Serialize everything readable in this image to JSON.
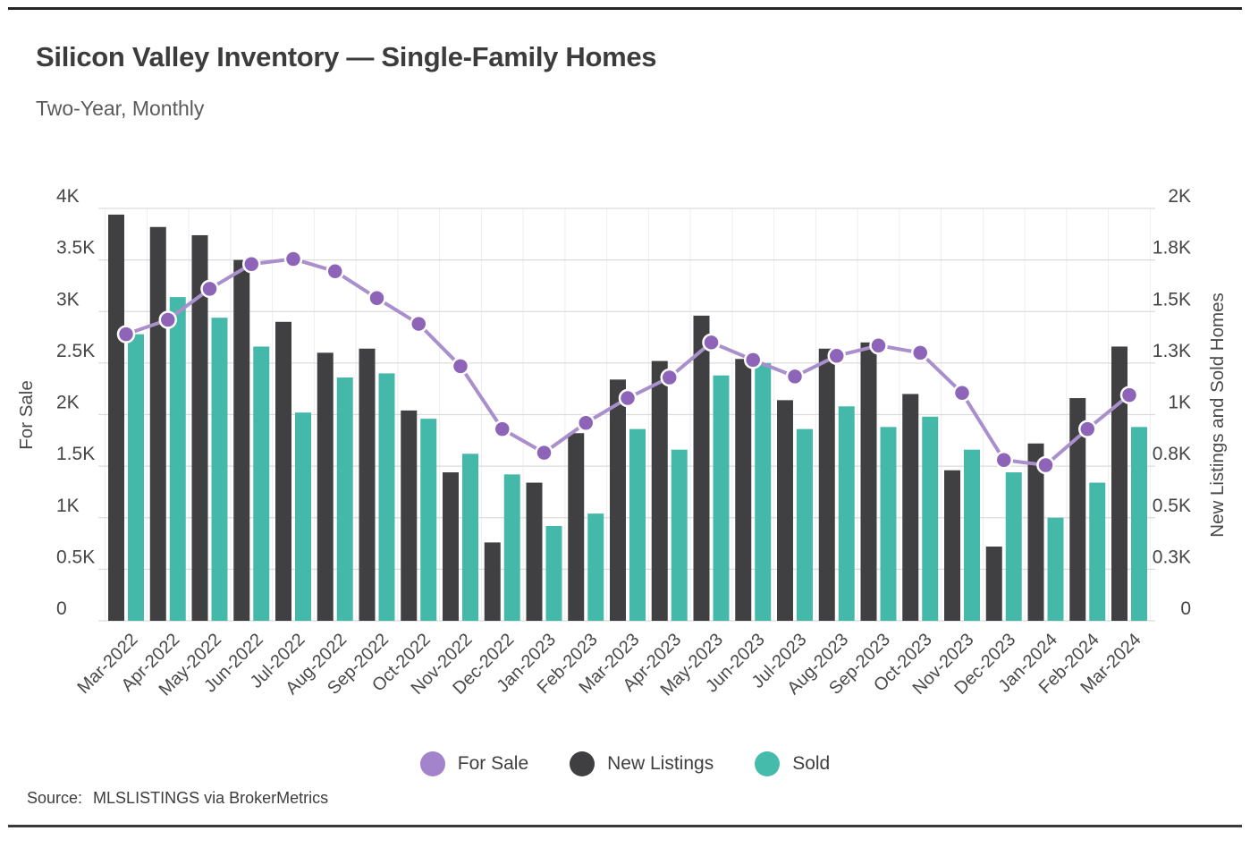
{
  "header": {
    "title": "Silicon Valley Inventory — Single-Family Homes",
    "subtitle": "Two-Year, Monthly"
  },
  "source": {
    "label": "Source:",
    "text": "MLSLISTINGS via BrokerMetrics"
  },
  "colors": {
    "for_sale_line": "#a98fcb",
    "for_sale_marker": "#8d64b8",
    "new_listings_bar": "#403f41",
    "sold_bar": "#45b9a9",
    "grid": "#dcdcdc",
    "grid_vertical": "#eeeeee"
  },
  "legend": {
    "items": [
      {
        "label": "For Sale",
        "color": "#a383cc"
      },
      {
        "label": "New Listings",
        "color": "#3f3e41"
      },
      {
        "label": "Sold",
        "color": "#45bcab"
      }
    ]
  },
  "chart_data": {
    "type": "combo",
    "title": "Silicon Valley Inventory — Single-Family Homes",
    "subtitle": "Two-Year, Monthly",
    "categories": [
      "Mar-2022",
      "Apr-2022",
      "May-2022",
      "Jun-2022",
      "Jul-2022",
      "Aug-2022",
      "Sep-2022",
      "Oct-2022",
      "Nov-2022",
      "Dec-2022",
      "Jan-2023",
      "Feb-2023",
      "Mar-2023",
      "Apr-2023",
      "May-2023",
      "Jun-2023",
      "Jul-2023",
      "Aug-2023",
      "Sep-2023",
      "Oct-2023",
      "Nov-2023",
      "Dec-2023",
      "Jan-2024",
      "Feb-2024",
      "Mar-2024"
    ],
    "series": [
      {
        "name": "For Sale",
        "kind": "line",
        "axis": "left",
        "color": "#8d64b8",
        "values": [
          2780,
          2920,
          3220,
          3460,
          3510,
          3390,
          3130,
          2880,
          2470,
          1860,
          1630,
          1920,
          2160,
          2360,
          2700,
          2530,
          2370,
          2570,
          2670,
          2600,
          2210,
          1560,
          1510,
          1860,
          2190
        ]
      },
      {
        "name": "New Listings",
        "kind": "bar",
        "axis": "right",
        "color": "#403f41",
        "values": [
          1970,
          1910,
          1870,
          1750,
          1450,
          1300,
          1320,
          1020,
          720,
          380,
          670,
          910,
          1170,
          1260,
          1480,
          1270,
          1070,
          1320,
          1350,
          1100,
          730,
          360,
          860,
          1080,
          1330
        ]
      },
      {
        "name": "Sold",
        "kind": "bar",
        "axis": "right",
        "color": "#45b9a9",
        "values": [
          1390,
          1570,
          1470,
          1330,
          1010,
          1180,
          1200,
          980,
          810,
          710,
          460,
          520,
          930,
          830,
          1190,
          1250,
          930,
          1040,
          940,
          990,
          830,
          720,
          500,
          670,
          940
        ]
      }
    ],
    "left_axis": {
      "label": "For Sale",
      "range": [
        0,
        4000
      ],
      "tick_values": [
        0,
        500,
        1000,
        1500,
        2000,
        2500,
        3000,
        3500,
        4000
      ],
      "tick_labels": [
        "0",
        "0.5K",
        "1K",
        "1.5K",
        "2K",
        "2.5K",
        "3K",
        "3.5K",
        "4K"
      ]
    },
    "right_axis": {
      "label": "New Listings and Sold Homes",
      "range": [
        0,
        2000
      ],
      "tick_values": [
        0,
        250,
        500,
        750,
        1000,
        1250,
        1500,
        1750,
        2000
      ],
      "tick_labels": [
        "0",
        "0.3K",
        "0.5K",
        "0.8K",
        "1K",
        "1.3K",
        "1.5K",
        "1.8K",
        "2K"
      ]
    },
    "grid": true,
    "legend_position": "bottom"
  }
}
